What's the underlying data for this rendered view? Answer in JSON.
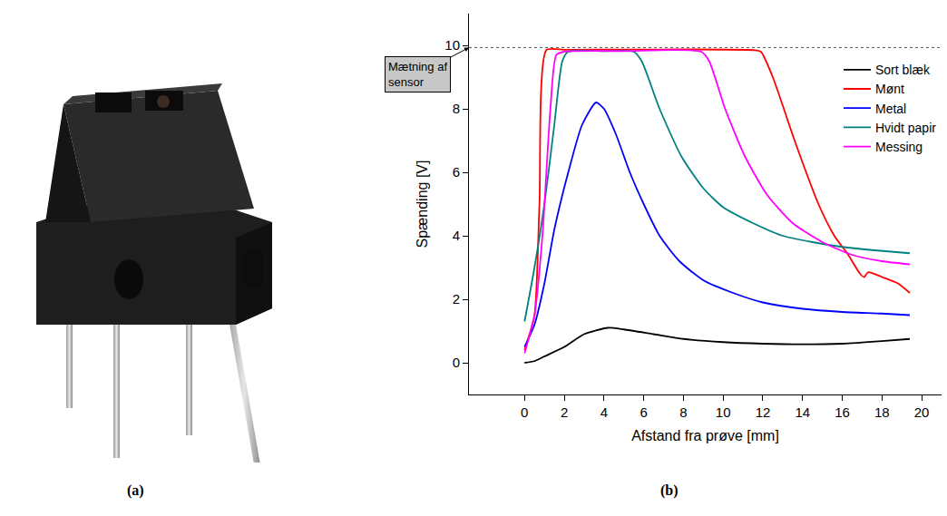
{
  "panel_labels": [
    "(a)",
    "(b)"
  ],
  "chart_data": {
    "type": "line",
    "x_label": "Afstand fra prøve [mm]",
    "y_label": "Spænding [V]",
    "xlim": [
      -2.8,
      21
    ],
    "xticks": [
      0,
      2,
      4,
      6,
      8,
      10,
      12,
      14,
      16,
      18,
      20
    ],
    "ylim": [
      -1,
      11
    ],
    "yticks": [
      0,
      2,
      4,
      6,
      8,
      10
    ],
    "grid": false,
    "legend": "top right",
    "annotations": [
      {
        "text": "Mætning af sensor",
        "y": 9.93
      }
    ],
    "series": [
      {
        "name": "Sort blæk",
        "color": "#000000",
        "x": [
          0,
          0.5,
          1,
          2,
          3,
          4.2,
          5,
          6.5,
          8,
          10,
          12,
          14,
          16,
          18,
          19.4
        ],
        "values": [
          0,
          0.05,
          0.2,
          0.5,
          0.9,
          1.1,
          1.05,
          0.9,
          0.75,
          0.65,
          0.6,
          0.58,
          0.6,
          0.68,
          0.75
        ]
      },
      {
        "name": "Mønt",
        "color": "#ff0000",
        "x": [
          0,
          0.5,
          0.75,
          1.1,
          2,
          6,
          11.5,
          11.9,
          12.5,
          13.6,
          14.8,
          15.6,
          16.3,
          16.9,
          17.1,
          17.3,
          18,
          18.8,
          19.4
        ],
        "values": [
          0.4,
          1.5,
          5,
          9.85,
          9.86,
          9.87,
          9.85,
          9.8,
          9,
          7,
          5,
          4,
          3.4,
          2.8,
          2.7,
          2.85,
          2.7,
          2.5,
          2.2
        ]
      },
      {
        "name": "Metal",
        "color": "#0000ff",
        "x": [
          0,
          0.5,
          1,
          1.5,
          2.2,
          2.9,
          3.6,
          4,
          4.6,
          5.3,
          6,
          6.8,
          7.8,
          9,
          10.5,
          12,
          14,
          16,
          18,
          19.4
        ],
        "values": [
          0.5,
          1.2,
          2.5,
          4.2,
          6,
          7.5,
          8.2,
          8,
          7.2,
          6,
          5,
          4,
          3.2,
          2.6,
          2.2,
          1.9,
          1.7,
          1.6,
          1.55,
          1.5
        ]
      },
      {
        "name": "Hvidt papir",
        "color": "#008080",
        "x": [
          0,
          0.5,
          1,
          1.5,
          1.9,
          2.2,
          4,
          5.5,
          5.9,
          6.8,
          7.9,
          9,
          10,
          11.5,
          13,
          14.5,
          16,
          17.5,
          19.4
        ],
        "values": [
          1.3,
          3,
          5,
          7.5,
          9.5,
          9.8,
          9.82,
          9.8,
          9.5,
          8,
          6.5,
          5.5,
          4.9,
          4.4,
          4,
          3.8,
          3.65,
          3.55,
          3.45
        ]
      },
      {
        "name": "Messing",
        "color": "#ff00ff",
        "x": [
          0,
          0.5,
          0.9,
          1.3,
          1.6,
          2,
          5,
          8.9,
          9.3,
          10.1,
          11.1,
          12.2,
          13.5,
          15,
          16.5,
          18,
          19.4
        ],
        "values": [
          0.3,
          1.5,
          4,
          8,
          9.7,
          9.8,
          9.82,
          9.8,
          9.5,
          8,
          6.5,
          5.3,
          4.4,
          3.8,
          3.4,
          3.2,
          3.1
        ]
      }
    ]
  }
}
